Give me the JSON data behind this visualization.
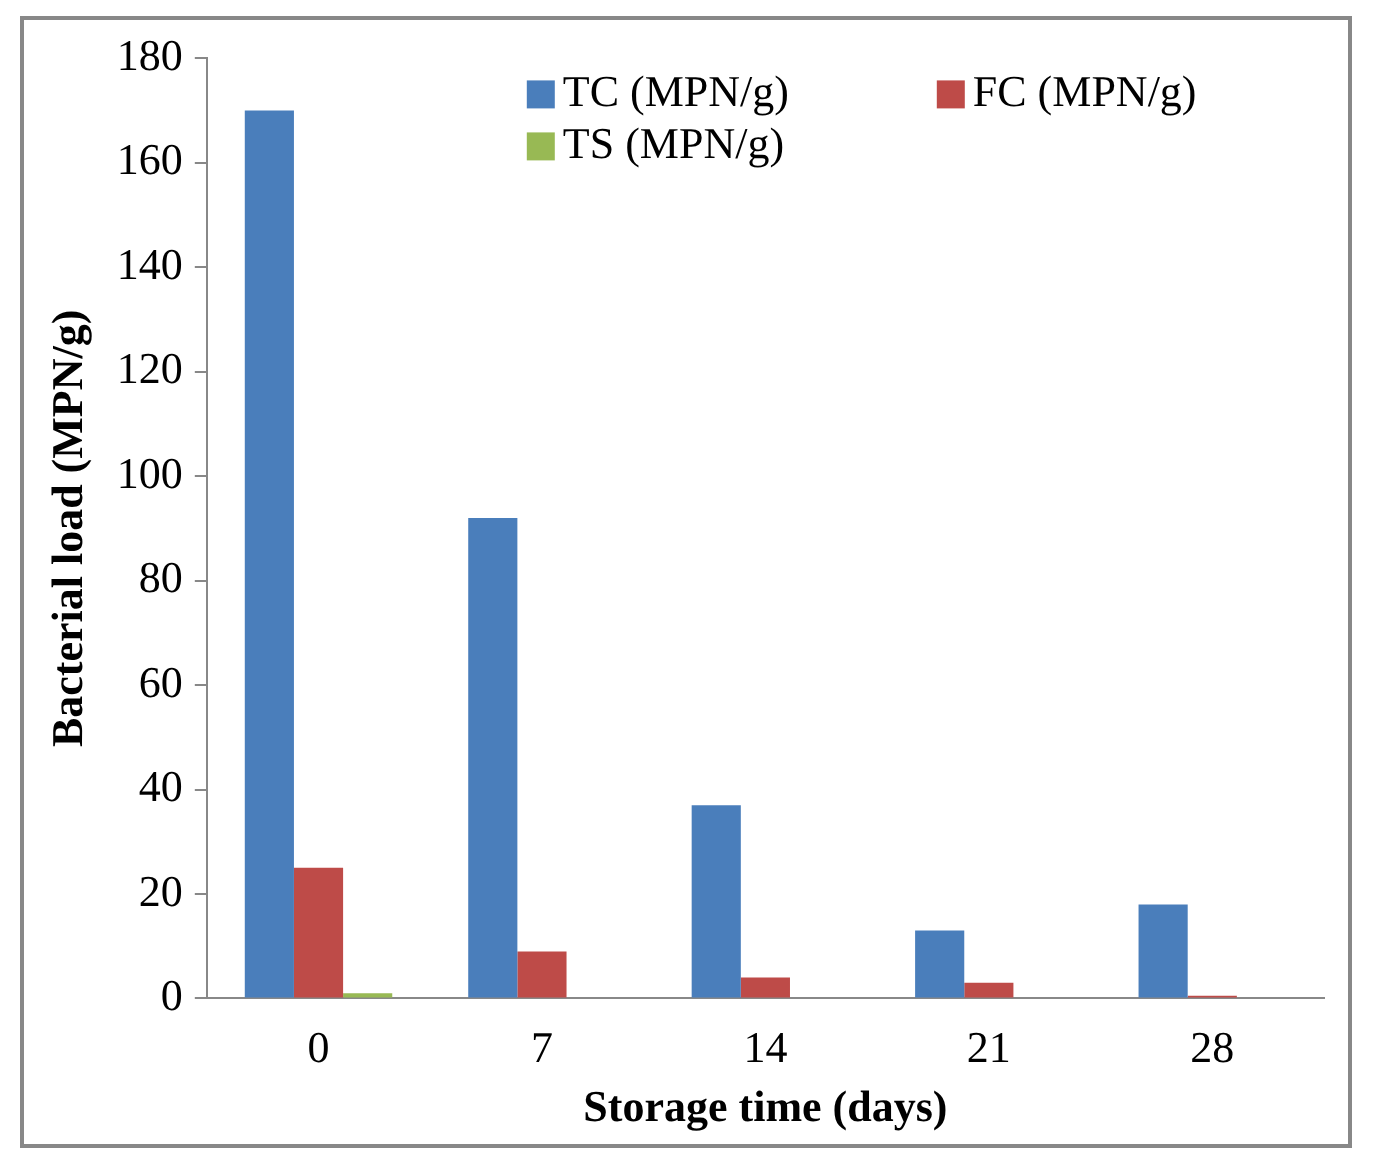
{
  "chart_data": {
    "type": "bar",
    "xlabel": "Storage time (days)",
    "ylabel": "Bacterial load (MPN/g)",
    "categories": [
      "0",
      "7",
      "14",
      "21",
      "28"
    ],
    "series": [
      {
        "name": "TC (MPN/g)",
        "color": "#4a7ebb",
        "values": [
          170,
          92,
          37,
          13,
          18
        ]
      },
      {
        "name": "FC (MPN/g)",
        "color": "#be4b48",
        "values": [
          25,
          9,
          4,
          3,
          0.5
        ]
      },
      {
        "name": "TS (MPN/g)",
        "color": "#98b954",
        "values": [
          1,
          0,
          0,
          0,
          0
        ]
      }
    ],
    "ylim": [
      0,
      180
    ],
    "yticks": [
      0,
      20,
      40,
      60,
      80,
      100,
      120,
      140,
      160,
      180
    ],
    "grid": false,
    "legend": "top right"
  }
}
